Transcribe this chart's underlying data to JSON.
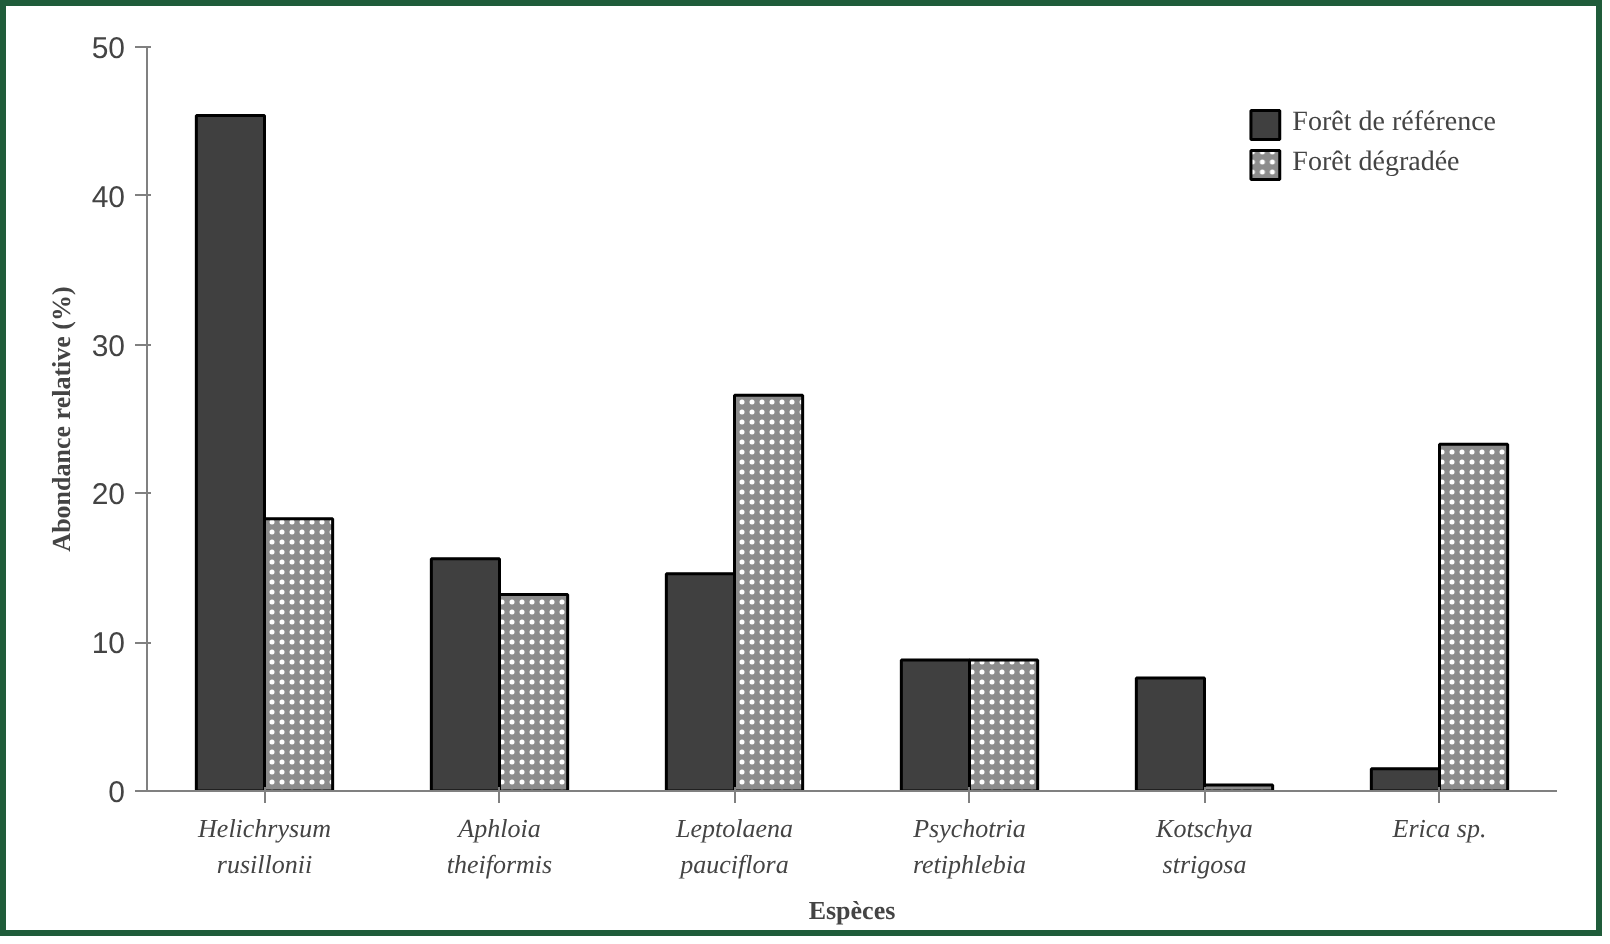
{
  "chart_data": {
    "type": "bar",
    "xlabel": "Espèces",
    "ylabel": "Abondance relative (%)",
    "categories": [
      "Helichrysum\nrusillonii",
      "Aphloia\ntheiformis",
      "Leptolaena\npauciflora",
      "Psychotria\nretiphlebia",
      "Kotschya\nstrigosa",
      "Erica sp."
    ],
    "series": [
      {
        "name": "Forêt de référence",
        "color": "#404040",
        "values": [
          45.4,
          15.6,
          14.6,
          8.8,
          7.6,
          1.5
        ]
      },
      {
        "name": "Forêt dégradée",
        "color": "#8c8c8c",
        "values": [
          18.3,
          13.2,
          26.6,
          8.8,
          0.4,
          23.3
        ]
      }
    ],
    "ylim": [
      0,
      50
    ],
    "yticks": [
      0,
      10,
      20,
      30,
      40,
      50
    ],
    "grid": false,
    "legend": "top right"
  }
}
